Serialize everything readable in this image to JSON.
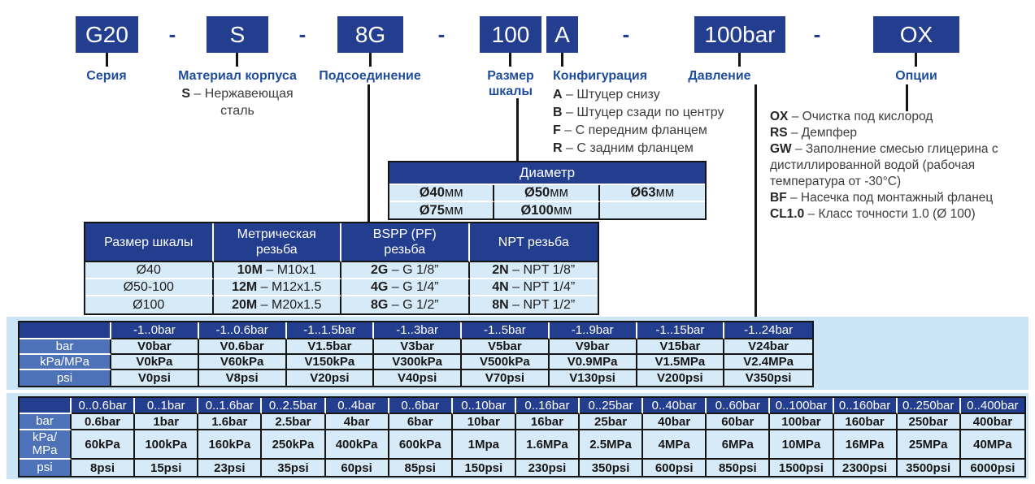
{
  "dash_separator": "–",
  "order_code": {
    "separator": "-",
    "blocks": [
      {
        "code": "G20",
        "label": "Серия"
      },
      {
        "code": "S",
        "label": "Материал корпуса"
      },
      {
        "code": "8G",
        "label": "Подсоединение"
      },
      {
        "code": "100",
        "label": "Размер шкалы"
      },
      {
        "code": "A",
        "label": "Конфигурация"
      },
      {
        "code": "100bar",
        "label": "Давление"
      },
      {
        "code": "OX",
        "label": "Опции"
      }
    ]
  },
  "material_note": {
    "code": "S",
    "desc": "Нержавеющая сталь"
  },
  "configuration_options": [
    {
      "code": "A",
      "desc": "Штуцер снизу"
    },
    {
      "code": "B",
      "desc": "Штуцер сзади по центру"
    },
    {
      "code": "F",
      "desc": "С передним фланцем"
    },
    {
      "code": "R",
      "desc": "С задним фланцем"
    }
  ],
  "general_options": [
    {
      "code": "OX",
      "desc": "Очистка под кислород"
    },
    {
      "code": "RS",
      "desc": "Демпфер"
    },
    {
      "code": "GW",
      "desc": "Заполнение смесью глицерина с дистиллированной водой (рабочая температура от -30°C)"
    },
    {
      "code": "BF",
      "desc": "Насечка под монтажный фланец"
    },
    {
      "code": "CL1.0",
      "desc": "Класс точности 1.0 (Ø 100)"
    }
  ],
  "diameter_table": {
    "title": "Диаметр",
    "rows": [
      [
        {
          "size": "Ø40",
          "unit": "мм"
        },
        {
          "size": "Ø50",
          "unit": "мм"
        },
        {
          "size": "Ø63",
          "unit": "мм"
        }
      ],
      [
        {
          "size": "Ø75",
          "unit": "мм"
        },
        {
          "size": "Ø100",
          "unit": "мм"
        },
        null
      ]
    ]
  },
  "thread_table": {
    "headers": [
      "Размер шкалы",
      "Метрическая\nрезьба",
      "BSPP (PF)\nрезьба",
      "NPT резьба"
    ],
    "rows": [
      {
        "size": "Ø40",
        "cells": [
          {
            "code": "10M",
            "desc": "M10x1"
          },
          {
            "code": "2G",
            "desc": "G 1/8”"
          },
          {
            "code": "2N",
            "desc": "NPT 1/8”"
          }
        ]
      },
      {
        "size": "Ø50-100",
        "cells": [
          {
            "code": "12M",
            "desc": "M12x1.5"
          },
          {
            "code": "4G",
            "desc": "G 1/4”"
          },
          {
            "code": "4N",
            "desc": "NPT 1/4”"
          }
        ]
      },
      {
        "size": "Ø100",
        "cells": [
          {
            "code": "20M",
            "desc": "M20x1.5"
          },
          {
            "code": "8G",
            "desc": "G 1/2”"
          },
          {
            "code": "8N",
            "desc": "NPT 1/2”"
          }
        ]
      }
    ]
  },
  "vacuum_range_table": {
    "row_labels": [
      "bar",
      "kPa/MPa",
      "psi"
    ],
    "headers": [
      "-1..0bar",
      "-1..0.6bar",
      "-1..1.5bar",
      "-1..3bar",
      "-1..5bar",
      "-1..9bar",
      "-1..15bar",
      "-1..24bar"
    ],
    "rows": [
      [
        "V0bar",
        "V0.6bar",
        "V1.5bar",
        "V3bar",
        "V5bar",
        "V9bar",
        "V15bar",
        "V24bar"
      ],
      [
        "V0kPa",
        "V60kPa",
        "V150kPa",
        "V300kPa",
        "V500kPa",
        "V0.9MPa",
        "V1.5MPa",
        "V2.4MPa"
      ],
      [
        "V0psi",
        "V8psi",
        "V20psi",
        "V40psi",
        "V70psi",
        "V130psi",
        "V200psi",
        "V350psi"
      ]
    ]
  },
  "pressure_range_table": {
    "row_labels": [
      "bar",
      "kPa/\nMPa",
      "psi"
    ],
    "headers": [
      "0..0.6bar",
      "0..1bar",
      "0..1.6bar",
      "0..2.5bar",
      "0..4bar",
      "0..6bar",
      "0..10bar",
      "0..16bar",
      "0..25bar",
      "0..40bar",
      "0..60bar",
      "0..100bar",
      "0..160bar",
      "0..250bar",
      "0..400bar"
    ],
    "rows": [
      [
        "0.6bar",
        "1bar",
        "1.6bar",
        "2.5bar",
        "4bar",
        "6bar",
        "10bar",
        "16bar",
        "25bar",
        "40bar",
        "60bar",
        "100bar",
        "160bar",
        "250bar",
        "400bar"
      ],
      [
        "60kPa",
        "100kPa",
        "160kPa",
        "250kPa",
        "400kPa",
        "600kPa",
        "1Mpa",
        "1.6MPa",
        "2.5MPa",
        "4MPa",
        "6MPa",
        "10MPa",
        "16MPa",
        "25MPa",
        "40MPa"
      ],
      [
        "8psi",
        "15psi",
        "23psi",
        "35psi",
        "60psi",
        "85psi",
        "150psi",
        "230psi",
        "350psi",
        "600psi",
        "850psi",
        "1500psi",
        "2300psi",
        "3500psi",
        "6000psi"
      ]
    ]
  },
  "colors": {
    "navy": "#233E8F",
    "medium_blue": "#4D72B8",
    "cell_blue": "#D6EAF8",
    "band_blue": "#CBE4F6",
    "label_blue": "#1F4E9E"
  }
}
